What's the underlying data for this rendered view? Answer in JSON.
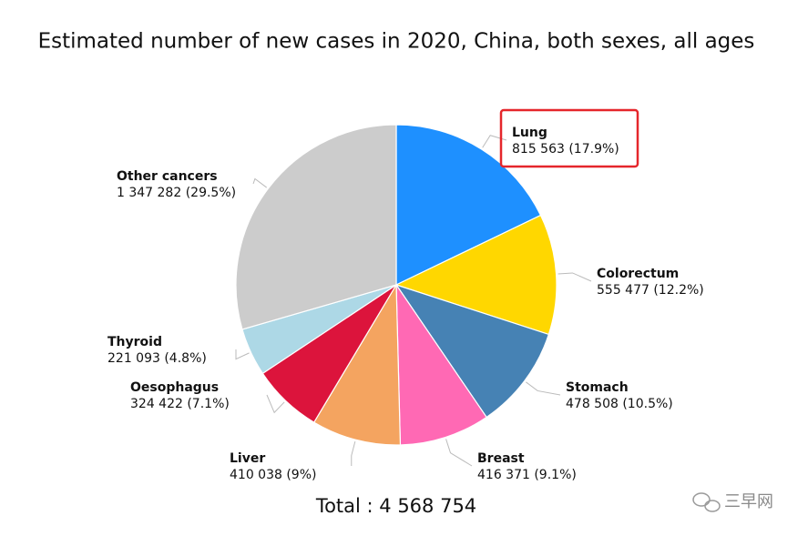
{
  "chart_data": {
    "type": "pie",
    "title": "Estimated number of new cases in 2020, China, both sexes, all ages",
    "categories": [
      "Lung",
      "Colorectum",
      "Stomach",
      "Breast",
      "Liver",
      "Oesophagus",
      "Thyroid",
      "Other cancers"
    ],
    "values": [
      815563,
      555477,
      478508,
      416371,
      410038,
      324422,
      221093,
      1347282
    ],
    "value_labels": [
      "815 563 (17.9%)",
      "555 477 (12.2%)",
      "478 508 (10.5%)",
      "416 371 (9.1%)",
      "410 038 (9%)",
      "324 422 (7.1%)",
      "221 093 (4.8%)",
      "1 347 282 (29.5%)"
    ],
    "colors": [
      "#1e90ff",
      "#ffd700",
      "#4682b4",
      "#ff69b4",
      "#f4a460",
      "#dc143c",
      "#add8e6",
      "#cccccc"
    ],
    "total_text": "Total : 4 568 754"
  },
  "watermark": "三早网"
}
